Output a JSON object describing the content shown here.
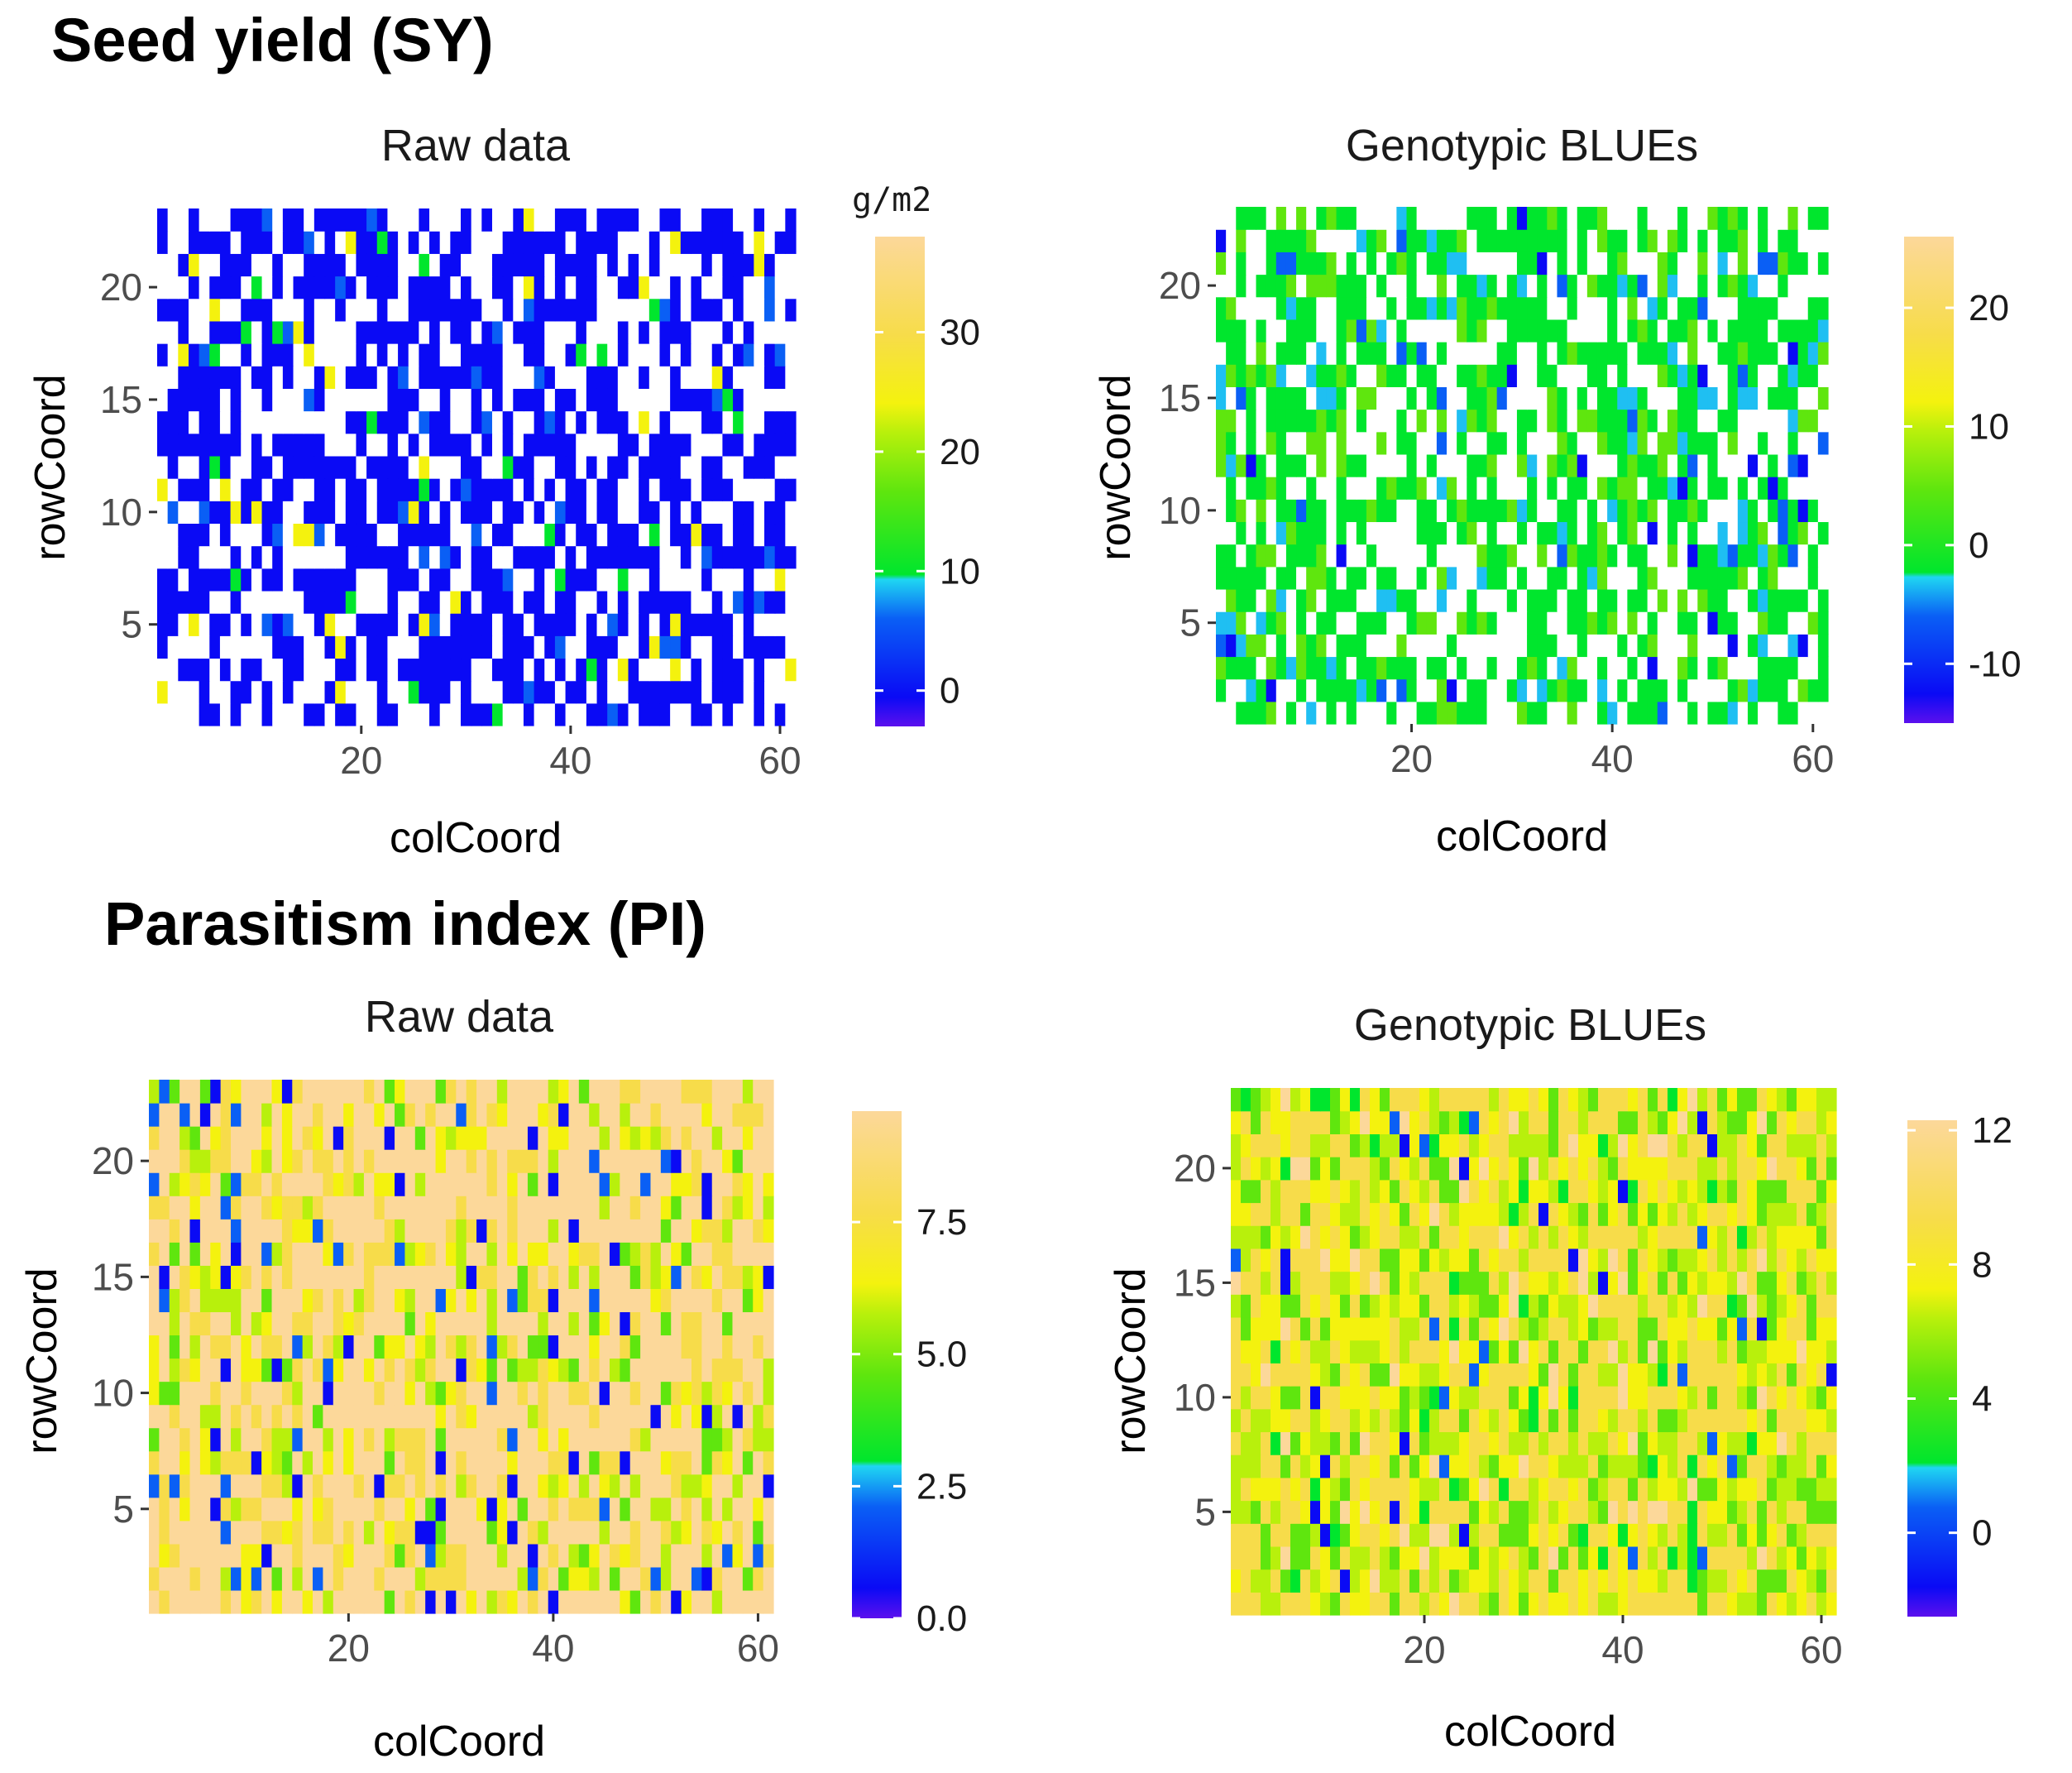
{
  "colors": {
    "na": "#ffffff",
    "palette": [
      "#5b10ee",
      "#0a0af5",
      "#0a5ff5",
      "#1fbff2",
      "#00e62d",
      "#5fe60e",
      "#b8f00c",
      "#f4f20e",
      "#f7dc4a",
      "#fcd89a"
    ]
  },
  "sections": [
    {
      "title": "Seed yield (SY)"
    },
    {
      "title": "Parasitism index (PI)"
    }
  ],
  "chart_data": [
    {
      "type": "heatmap",
      "section": "Seed yield (SY)",
      "title": "Raw data",
      "xlabel": "colCoord",
      "ylabel": "rowCoord",
      "x_range": [
        1,
        61
      ],
      "y_range": [
        1,
        23
      ],
      "x_ticks": [
        "20",
        "40",
        "60"
      ],
      "y_ticks": [
        "5",
        "10",
        "15",
        "20"
      ],
      "x_tick_values": [
        20,
        40,
        60
      ],
      "y_tick_values": [
        5,
        10,
        15,
        20
      ],
      "legend_title": "g/m2",
      "legend_range": [
        -3,
        38
      ],
      "legend_ticks": [
        "0",
        "10",
        "20",
        "30"
      ],
      "legend_tick_values": [
        0,
        10,
        20,
        30
      ],
      "profile": "sy_raw",
      "seed": 11
    },
    {
      "type": "heatmap",
      "section": "Seed yield (SY)",
      "title": "Genotypic BLUEs",
      "xlabel": "colCoord",
      "ylabel": "rowCoord",
      "x_range": [
        1,
        61
      ],
      "y_range": [
        1,
        23
      ],
      "x_ticks": [
        "20",
        "40",
        "60"
      ],
      "y_ticks": [
        "5",
        "10",
        "15",
        "20"
      ],
      "x_tick_values": [
        20,
        40,
        60
      ],
      "y_tick_values": [
        5,
        10,
        15,
        20
      ],
      "legend_title": "",
      "legend_range": [
        -15,
        26
      ],
      "legend_ticks": [
        "-10",
        "0",
        "10",
        "20"
      ],
      "legend_tick_values": [
        -10,
        0,
        10,
        20
      ],
      "profile": "sy_blue",
      "seed": 23
    },
    {
      "type": "heatmap",
      "section": "Parasitism index (PI)",
      "title": "Raw data",
      "xlabel": "colCoord",
      "ylabel": "rowCoord",
      "x_range": [
        1,
        61
      ],
      "y_range": [
        1,
        23
      ],
      "x_ticks": [
        "20",
        "40",
        "60"
      ],
      "y_ticks": [
        "5",
        "10",
        "15",
        "20"
      ],
      "x_tick_values": [
        20,
        40,
        60
      ],
      "y_tick_values": [
        5,
        10,
        15,
        20
      ],
      "legend_title": "",
      "legend_range": [
        0,
        9.6
      ],
      "legend_ticks": [
        "0.0",
        "2.5",
        "5.0",
        "7.5"
      ],
      "legend_tick_values": [
        0,
        2.5,
        5,
        7.5
      ],
      "profile": "pi_raw",
      "seed": 37
    },
    {
      "type": "heatmap",
      "section": "Parasitism index (PI)",
      "title": "Genotypic BLUEs",
      "xlabel": "colCoord",
      "ylabel": "rowCoord",
      "x_range": [
        1,
        61
      ],
      "y_range": [
        1,
        23
      ],
      "x_ticks": [
        "20",
        "40",
        "60"
      ],
      "y_ticks": [
        "5",
        "10",
        "15",
        "20"
      ],
      "x_tick_values": [
        20,
        40,
        60
      ],
      "y_tick_values": [
        5,
        10,
        15,
        20
      ],
      "legend_title": "",
      "legend_range": [
        -2.5,
        12.3
      ],
      "legend_ticks": [
        "0",
        "4",
        "8",
        "12"
      ],
      "legend_tick_values": [
        0,
        4,
        8,
        12
      ],
      "profile": "pi_blue",
      "seed": 53
    }
  ]
}
